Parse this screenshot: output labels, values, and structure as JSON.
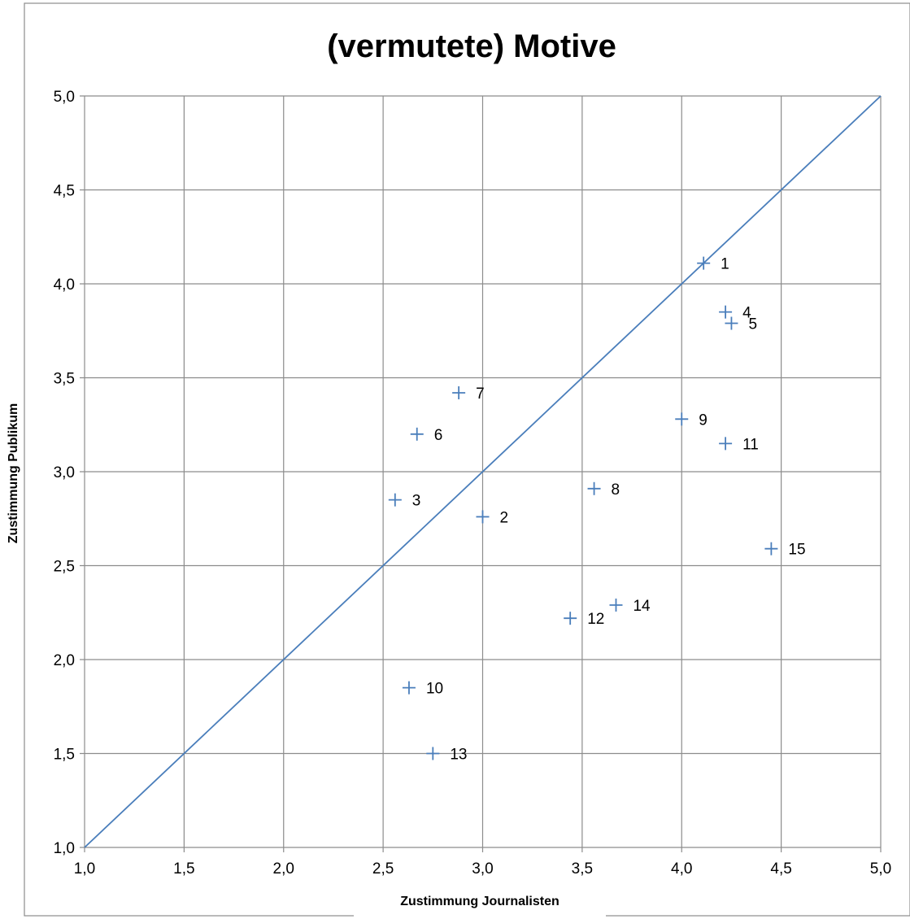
{
  "chart_data": {
    "type": "scatter",
    "title": "(vermutete) Motive",
    "xlabel": "Zustimmung Journalisten",
    "ylabel": "Zustimmung Publikum",
    "xlim": [
      1.0,
      5.0
    ],
    "ylim": [
      1.0,
      5.0
    ],
    "x_ticks": [
      "1,0",
      "1,5",
      "2,0",
      "2,5",
      "3,0",
      "3,5",
      "4,0",
      "4,5",
      "5,0"
    ],
    "y_ticks": [
      "1,0",
      "1,5",
      "2,0",
      "2,5",
      "3,0",
      "3,5",
      "4,0",
      "4,5",
      "5,0"
    ],
    "grid": true,
    "reference_line": {
      "from": [
        1.0,
        1.0
      ],
      "to": [
        5.0,
        5.0
      ]
    },
    "colors": {
      "marker": "#4a7ebb",
      "grid": "#8c8c8c"
    },
    "points": [
      {
        "label": "1",
        "x": 4.11,
        "y": 4.11
      },
      {
        "label": "2",
        "x": 3.0,
        "y": 2.76
      },
      {
        "label": "3",
        "x": 2.56,
        "y": 2.85
      },
      {
        "label": "4",
        "x": 4.22,
        "y": 3.85
      },
      {
        "label": "5",
        "x": 4.25,
        "y": 3.79
      },
      {
        "label": "6",
        "x": 2.67,
        "y": 3.2
      },
      {
        "label": "7",
        "x": 2.88,
        "y": 3.42
      },
      {
        "label": "8",
        "x": 3.56,
        "y": 2.91
      },
      {
        "label": "9",
        "x": 4.0,
        "y": 3.28
      },
      {
        "label": "10",
        "x": 2.63,
        "y": 1.85
      },
      {
        "label": "11",
        "x": 4.22,
        "y": 3.15
      },
      {
        "label": "12",
        "x": 3.44,
        "y": 2.22
      },
      {
        "label": "13",
        "x": 2.75,
        "y": 1.5
      },
      {
        "label": "14",
        "x": 3.67,
        "y": 2.29
      },
      {
        "label": "15",
        "x": 4.45,
        "y": 2.59
      }
    ]
  }
}
